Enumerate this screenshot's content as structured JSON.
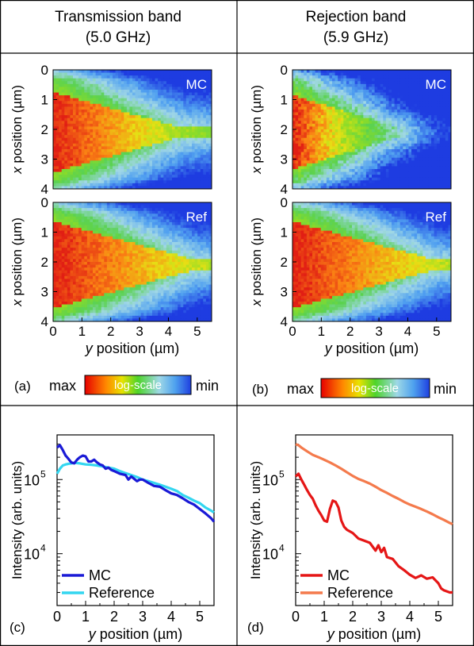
{
  "headers": {
    "left": {
      "line1": "Transmission band",
      "line2": "(5.0 GHz)"
    },
    "right": {
      "line1": "Rejection band",
      "line2": "(5.9 GHz)"
    }
  },
  "colorbar": {
    "max": "max",
    "min": "min",
    "label": "log-scale"
  },
  "panel_letters": {
    "a": "(a)",
    "b": "(b)",
    "c": "(c)",
    "d": "(d)"
  },
  "chart_data": [
    {
      "id": "a-mc",
      "type": "heatmap",
      "panel": "(a)",
      "tag": "MC",
      "xlabel": "",
      "ylabel": "x position (µm)",
      "xlim": [
        0,
        5.5
      ],
      "ylim": [
        0,
        4
      ],
      "yticks": [
        0,
        1,
        2,
        3,
        4
      ],
      "pattern": "transmission",
      "colorscale": "log, red (max) - yellow - green - blue (min)"
    },
    {
      "id": "a-ref",
      "type": "heatmap",
      "panel": "(a)",
      "tag": "Ref",
      "xlabel": "y position (µm)",
      "ylabel": "x position (µm)",
      "xlim": [
        0,
        5.5
      ],
      "ylim": [
        0,
        4
      ],
      "xticks": [
        0,
        1,
        2,
        3,
        4,
        5
      ],
      "yticks": [
        0,
        1,
        2,
        3,
        4
      ],
      "pattern": "reference",
      "colorscale": "log, red (max) - yellow - green - blue (min)"
    },
    {
      "id": "b-mc",
      "type": "heatmap",
      "panel": "(b)",
      "tag": "MC",
      "xlabel": "",
      "ylabel": "x position (µm)",
      "xlim": [
        0,
        5.5
      ],
      "ylim": [
        0,
        4
      ],
      "yticks": [
        0,
        1,
        2,
        3,
        4
      ],
      "pattern": "rejection",
      "colorscale": "log, red (max) - yellow - green - blue (min)"
    },
    {
      "id": "b-ref",
      "type": "heatmap",
      "panel": "(b)",
      "tag": "Ref",
      "xlabel": "y position (µm)",
      "ylabel": "x position (µm)",
      "xlim": [
        0,
        5.5
      ],
      "ylim": [
        0,
        4
      ],
      "xticks": [
        0,
        1,
        2,
        3,
        4,
        5
      ],
      "yticks": [
        0,
        1,
        2,
        3,
        4
      ],
      "pattern": "reference",
      "colorscale": "log, red (max) - yellow - green - blue (min)"
    },
    {
      "id": "c",
      "type": "line",
      "panel": "(c)",
      "xlabel": "y position (µm)",
      "ylabel": "Intensity (arb. units)",
      "xlim": [
        0,
        5.5
      ],
      "ylim": [
        2000,
        400000
      ],
      "yscale": "log",
      "xticks": [
        0,
        1,
        2,
        3,
        4,
        5
      ],
      "yticks": [
        {
          "v": 10000,
          "label": "10^4"
        },
        {
          "v": 100000,
          "label": "10^5"
        }
      ],
      "legend": "bottom-left",
      "series": [
        {
          "name": "MC",
          "color": "#1a1ad6",
          "x": [
            0,
            0.1,
            0.2,
            0.3,
            0.4,
            0.5,
            0.6,
            0.7,
            0.8,
            0.9,
            1.0,
            1.1,
            1.2,
            1.3,
            1.4,
            1.5,
            1.6,
            1.7,
            1.8,
            1.9,
            2.0,
            2.2,
            2.4,
            2.5,
            2.6,
            2.8,
            2.9,
            3.0,
            3.2,
            3.4,
            3.6,
            3.8,
            4.0,
            4.2,
            4.4,
            4.6,
            4.8,
            5.0,
            5.2,
            5.4,
            5.5
          ],
          "y": [
            270000,
            290000,
            250000,
            210000,
            190000,
            170000,
            165000,
            185000,
            200000,
            210000,
            205000,
            175000,
            175000,
            185000,
            170000,
            160000,
            155000,
            140000,
            145000,
            135000,
            130000,
            120000,
            115000,
            100000,
            110000,
            95000,
            100000,
            100000,
            90000,
            82000,
            80000,
            72000,
            65000,
            62000,
            56000,
            50000,
            46000,
            40000,
            35000,
            30000,
            27000
          ]
        },
        {
          "name": "Reference",
          "color": "#33d6f0",
          "x": [
            0,
            0.1,
            0.2,
            0.3,
            0.4,
            0.5,
            0.6,
            0.8,
            1.0,
            1.2,
            1.4,
            1.6,
            1.8,
            2.0,
            2.2,
            2.4,
            2.6,
            2.8,
            3.0,
            3.2,
            3.4,
            3.6,
            3.8,
            4.0,
            4.2,
            4.4,
            4.6,
            4.8,
            5.0,
            5.2,
            5.4,
            5.5
          ],
          "y": [
            120000,
            140000,
            155000,
            160000,
            163000,
            165000,
            168000,
            165000,
            160000,
            158000,
            155000,
            150000,
            145000,
            140000,
            130000,
            122000,
            115000,
            108000,
            100000,
            95000,
            90000,
            85000,
            80000,
            75000,
            70000,
            62000,
            57000,
            52000,
            48000,
            42000,
            38000,
            36000
          ]
        }
      ]
    },
    {
      "id": "d",
      "type": "line",
      "panel": "(d)",
      "xlabel": "y position (µm)",
      "ylabel": "Intensity (arb. units)",
      "xlim": [
        0,
        5.5
      ],
      "ylim": [
        2000,
        400000
      ],
      "yscale": "log",
      "xticks": [
        0,
        1,
        2,
        3,
        4,
        5
      ],
      "yticks": [
        {
          "v": 10000,
          "label": "10^4"
        },
        {
          "v": 100000,
          "label": "10^5"
        }
      ],
      "legend": "bottom-left",
      "series": [
        {
          "name": "MC",
          "color": "#e51616",
          "x": [
            0,
            0.1,
            0.2,
            0.3,
            0.4,
            0.5,
            0.6,
            0.7,
            0.8,
            0.9,
            1.0,
            1.1,
            1.2,
            1.3,
            1.4,
            1.5,
            1.6,
            1.7,
            1.8,
            1.9,
            2.0,
            2.2,
            2.4,
            2.6,
            2.8,
            2.9,
            3.0,
            3.1,
            3.2,
            3.4,
            3.6,
            3.8,
            4.0,
            4.2,
            4.4,
            4.6,
            4.8,
            5.0,
            5.1,
            5.2,
            5.4,
            5.5
          ],
          "y": [
            110000,
            120000,
            100000,
            85000,
            72000,
            62000,
            55000,
            45000,
            38000,
            33000,
            28000,
            27000,
            40000,
            52000,
            50000,
            42000,
            28000,
            23000,
            21000,
            20000,
            19000,
            16000,
            15000,
            14000,
            11000,
            13000,
            10500,
            12000,
            9000,
            8500,
            6800,
            6000,
            5200,
            4700,
            5100,
            4600,
            4800,
            4000,
            3400,
            3200,
            3000,
            3000
          ]
        },
        {
          "name": "Reference",
          "color": "#f47a4c",
          "x": [
            0,
            0.1,
            0.2,
            0.4,
            0.6,
            0.8,
            1.0,
            1.2,
            1.4,
            1.6,
            1.8,
            2.0,
            2.2,
            2.4,
            2.6,
            2.8,
            3.0,
            3.2,
            3.4,
            3.6,
            3.8,
            4.0,
            4.2,
            4.4,
            4.6,
            4.8,
            5.0,
            5.2,
            5.4,
            5.5
          ],
          "y": [
            300000,
            290000,
            270000,
            240000,
            215000,
            200000,
            185000,
            170000,
            155000,
            140000,
            125000,
            112000,
            102000,
            95000,
            88000,
            80000,
            72000,
            66000,
            60000,
            55000,
            50000,
            46000,
            43000,
            40000,
            37000,
            34000,
            31000,
            28500,
            26000,
            25000
          ]
        }
      ]
    }
  ]
}
